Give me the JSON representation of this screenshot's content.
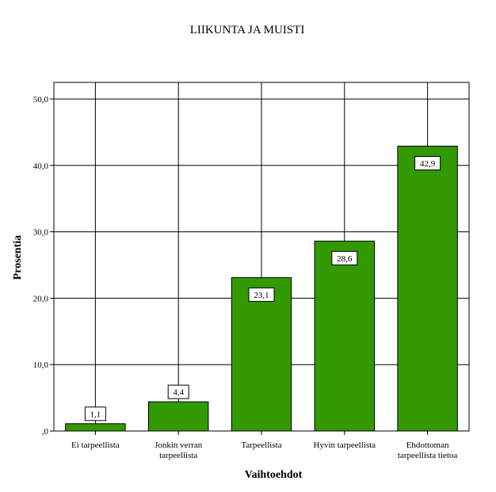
{
  "chart_data": {
    "type": "bar",
    "title": "LIIKUNTA JA MUISTI",
    "xlabel": "Vaihtoehdot",
    "ylabel": "Prosentia",
    "ylim": [
      0,
      52.5
    ],
    "yticks": [
      0,
      10,
      20,
      30,
      40,
      50
    ],
    "ytick_labels": [
      ",0",
      "10,0",
      "20,0",
      "30,0",
      "40,0",
      "50,0"
    ],
    "categories": [
      [
        "Ei tarpeellista"
      ],
      [
        "Jonkin verran",
        "tarpeellista"
      ],
      [
        "Tarpeellista"
      ],
      [
        "Hyvin tarpeellista"
      ],
      [
        "Ehdottoman",
        "tarpeellista tietoa"
      ]
    ],
    "values": [
      1.1,
      4.4,
      23.1,
      28.6,
      42.9
    ],
    "value_labels": [
      "1,1",
      "4,4",
      "23,1",
      "28,6",
      "42,9"
    ],
    "grid": true,
    "bar_color": "#339900"
  }
}
